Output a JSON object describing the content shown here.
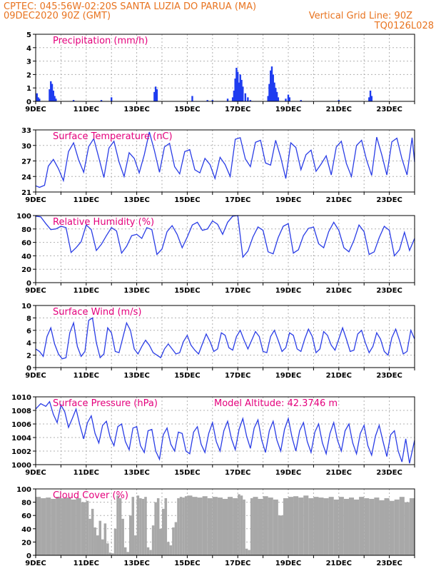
{
  "header": {
    "left_line1": "CPTEC:   045:56W-02:20S   SANTA LUZIA DO PARUA (MA)",
    "left_line2": "09DEC2020 90Z (GMT)",
    "right_line2": "Vertical Grid Line: 90Z",
    "right_line3": "TQ0126L028"
  },
  "colors": {
    "header": "#e8731f",
    "title": "#e4007c",
    "series": "#2a3de6",
    "cloud": "#a8a8a8",
    "bars": "#1e3cf0"
  },
  "chart_data": [
    {
      "type": "bar",
      "title": "Precipitation (mm/h)",
      "xlim": [
        0,
        15
      ],
      "ylim": [
        0,
        5
      ],
      "yticks": [
        "0",
        "1",
        "2",
        "3",
        "4",
        "5"
      ],
      "xticks": [
        "9DEC",
        "11DEC",
        "13DEC",
        "15DEC",
        "17DEC",
        "19DEC",
        "21DEC",
        "23DEC"
      ],
      "x": [
        0.05,
        0.1,
        0.15,
        0.55,
        0.6,
        0.65,
        0.7,
        0.75,
        0.8,
        1.5,
        2.6,
        3.0,
        4.7,
        4.75,
        4.8,
        6.2,
        6.8,
        7.0,
        7.6,
        7.8,
        7.85,
        7.9,
        7.95,
        8.0,
        8.05,
        8.1,
        8.15,
        8.2,
        8.3,
        8.4,
        8.5,
        9.2,
        9.25,
        9.3,
        9.35,
        9.4,
        9.45,
        9.5,
        9.55,
        9.6,
        9.9,
        10.0,
        10.05,
        10.5,
        12.0,
        13.2,
        13.25,
        13.3
      ],
      "values": [
        0.6,
        0.3,
        0.2,
        0.9,
        1.5,
        1.3,
        0.8,
        0.4,
        0.2,
        0.1,
        0.1,
        0.3,
        0.7,
        1.1,
        0.9,
        0.4,
        0.1,
        0.1,
        0.2,
        0.3,
        0.8,
        1.7,
        2.5,
        2.2,
        1.4,
        2.0,
        1.6,
        1.1,
        0.6,
        0.3,
        0.1,
        0.4,
        1.3,
        2.3,
        2.6,
        2.0,
        1.4,
        1.0,
        0.7,
        0.3,
        0.2,
        0.5,
        0.3,
        0.1,
        0.1,
        0.3,
        0.8,
        0.4
      ]
    },
    {
      "type": "line",
      "title": "Surface Temperature (nC)",
      "xlim": [
        0,
        15
      ],
      "ylim": [
        21,
        33
      ],
      "yticks": [
        "21",
        "24",
        "27",
        "30",
        "33"
      ],
      "xticks": [
        "9DEC",
        "11DEC",
        "13DEC",
        "15DEC",
        "17DEC",
        "19DEC",
        "21DEC",
        "23DEC"
      ],
      "x": [
        0,
        0.15,
        0.35,
        0.5,
        0.7,
        0.9,
        1.1,
        1.3,
        1.5,
        1.7,
        1.9,
        2.1,
        2.3,
        2.5,
        2.7,
        2.9,
        3.1,
        3.3,
        3.5,
        3.7,
        3.9,
        4.1,
        4.3,
        4.5,
        4.7,
        4.9,
        5.1,
        5.3,
        5.5,
        5.7,
        5.9,
        6.1,
        6.3,
        6.5,
        6.7,
        6.9,
        7.1,
        7.3,
        7.5,
        7.7,
        7.9,
        8.1,
        8.3,
        8.5,
        8.7,
        8.9,
        9.1,
        9.3,
        9.5,
        9.7,
        9.9,
        10.1,
        10.3,
        10.5,
        10.7,
        10.9,
        11.1,
        11.3,
        11.5,
        11.7,
        11.9,
        12.1,
        12.3,
        12.5,
        12.7,
        12.9,
        13.1,
        13.3,
        13.5,
        13.7,
        13.9,
        14.1,
        14.3,
        14.5,
        14.7,
        14.9,
        15
      ],
      "values": [
        22.2,
        21.9,
        22.3,
        26.0,
        27.3,
        25.5,
        23.2,
        28.8,
        30.5,
        27.2,
        24.8,
        29.8,
        31.3,
        27.6,
        23.8,
        29.5,
        30.8,
        26.8,
        24.0,
        28.6,
        27.5,
        24.7,
        28.2,
        32.6,
        29.0,
        24.8,
        29.7,
        30.4,
        25.9,
        24.5,
        28.8,
        29.2,
        25.3,
        24.7,
        27.5,
        26.3,
        23.6,
        27.7,
        26.3,
        24.0,
        31.2,
        31.5,
        27.4,
        25.9,
        30.6,
        31.0,
        26.6,
        26.2,
        31.0,
        27.7,
        23.6,
        30.5,
        29.6,
        25.3,
        28.2,
        29.1,
        25.0,
        26.4,
        28.0,
        24.3,
        29.7,
        30.8,
        26.5,
        24.0,
        30.0,
        31.0,
        27.2,
        24.2,
        31.6,
        28.2,
        24.3,
        30.7,
        31.4,
        27.4,
        24.3,
        31.5,
        26.8
      ]
    },
    {
      "type": "line",
      "title": "Relative Humidity (%)",
      "xlim": [
        0,
        15
      ],
      "ylim": [
        0,
        100
      ],
      "yticks": [
        "0",
        "20",
        "40",
        "60",
        "80",
        "100"
      ],
      "xticks": [
        "9DEC",
        "11DEC",
        "13DEC",
        "15DEC",
        "17DEC",
        "19DEC",
        "21DEC",
        "23DEC"
      ],
      "x": [
        0,
        0.2,
        0.4,
        0.6,
        0.8,
        1.0,
        1.2,
        1.4,
        1.6,
        1.8,
        2.0,
        2.2,
        2.4,
        2.6,
        2.8,
        3.0,
        3.2,
        3.4,
        3.6,
        3.8,
        4.0,
        4.2,
        4.4,
        4.6,
        4.8,
        5.0,
        5.2,
        5.4,
        5.6,
        5.8,
        6.0,
        6.2,
        6.4,
        6.6,
        6.8,
        7.0,
        7.2,
        7.4,
        7.6,
        7.8,
        8.0,
        8.2,
        8.4,
        8.6,
        8.8,
        9.0,
        9.2,
        9.4,
        9.6,
        9.8,
        10.0,
        10.2,
        10.4,
        10.6,
        10.8,
        11.0,
        11.2,
        11.4,
        11.6,
        11.8,
        12.0,
        12.2,
        12.4,
        12.6,
        12.8,
        13.0,
        13.2,
        13.4,
        13.6,
        13.8,
        14.0,
        14.2,
        14.4,
        14.6,
        14.8,
        15
      ],
      "values": [
        99,
        98,
        88,
        79,
        80,
        84,
        82,
        45,
        52,
        61,
        86,
        79,
        48,
        57,
        70,
        82,
        77,
        44,
        54,
        70,
        72,
        66,
        82,
        79,
        42,
        50,
        76,
        85,
        72,
        52,
        68,
        86,
        90,
        78,
        80,
        92,
        87,
        72,
        90,
        99,
        100,
        38,
        47,
        68,
        83,
        78,
        46,
        43,
        67,
        84,
        88,
        44,
        49,
        70,
        81,
        83,
        58,
        52,
        76,
        90,
        78,
        52,
        46,
        63,
        86,
        76,
        42,
        46,
        67,
        84,
        78,
        40,
        49,
        75,
        48,
        66
      ]
    },
    {
      "type": "line",
      "title": "Surface Wind (m/s)",
      "xlim": [
        0,
        15
      ],
      "ylim": [
        0,
        10
      ],
      "yticks": [
        "0",
        "2",
        "4",
        "6",
        "8",
        "10"
      ],
      "xticks": [
        "9DEC",
        "11DEC",
        "13DEC",
        "15DEC",
        "17DEC",
        "19DEC",
        "21DEC",
        "23DEC"
      ],
      "x": [
        0,
        0.15,
        0.3,
        0.45,
        0.6,
        0.75,
        0.9,
        1.05,
        1.2,
        1.35,
        1.5,
        1.65,
        1.8,
        1.95,
        2.1,
        2.25,
        2.4,
        2.55,
        2.7,
        2.85,
        3.0,
        3.15,
        3.3,
        3.45,
        3.6,
        3.75,
        3.9,
        4.05,
        4.2,
        4.35,
        4.5,
        4.65,
        4.8,
        4.95,
        5.1,
        5.25,
        5.4,
        5.55,
        5.7,
        5.85,
        6.0,
        6.15,
        6.3,
        6.45,
        6.6,
        6.75,
        6.9,
        7.05,
        7.2,
        7.35,
        7.5,
        7.65,
        7.8,
        7.95,
        8.1,
        8.25,
        8.4,
        8.55,
        8.7,
        8.85,
        9.0,
        9.15,
        9.3,
        9.45,
        9.6,
        9.75,
        9.9,
        10.05,
        10.2,
        10.35,
        10.5,
        10.65,
        10.8,
        10.95,
        11.1,
        11.25,
        11.4,
        11.55,
        11.7,
        11.85,
        12.0,
        12.15,
        12.3,
        12.45,
        12.6,
        12.75,
        12.9,
        13.05,
        13.2,
        13.35,
        13.5,
        13.65,
        13.8,
        13.95,
        14.1,
        14.25,
        14.4,
        14.55,
        14.7,
        14.85,
        15
      ],
      "values": [
        3.0,
        2.6,
        1.8,
        5.0,
        6.4,
        3.8,
        2.2,
        1.4,
        1.6,
        5.6,
        7.2,
        3.4,
        1.8,
        2.6,
        7.6,
        8.0,
        4.0,
        1.6,
        2.2,
        6.4,
        5.6,
        2.6,
        2.4,
        4.8,
        7.2,
        6.0,
        3.0,
        2.2,
        3.4,
        4.4,
        3.6,
        2.4,
        2.0,
        1.6,
        3.0,
        3.8,
        3.0,
        2.2,
        2.4,
        4.2,
        5.2,
        3.6,
        2.8,
        2.2,
        3.8,
        5.4,
        4.2,
        2.6,
        3.0,
        5.6,
        5.2,
        3.2,
        2.8,
        5.0,
        6.0,
        4.4,
        3.0,
        4.4,
        5.8,
        5.0,
        2.6,
        2.4,
        5.0,
        6.0,
        4.4,
        2.6,
        3.2,
        5.6,
        5.2,
        3.0,
        2.6,
        4.6,
        6.2,
        5.0,
        2.4,
        3.0,
        5.8,
        5.2,
        3.6,
        2.8,
        4.6,
        6.4,
        4.6,
        2.6,
        2.8,
        5.4,
        6.0,
        4.0,
        2.4,
        3.4,
        5.6,
        4.6,
        2.6,
        2.0,
        4.8,
        6.2,
        4.4,
        2.2,
        2.6,
        6.0,
        4.6
      ]
    },
    {
      "type": "line",
      "title": "Surface Pressure (hPa)",
      "annotation": "Model Altitude: 42.3746 m",
      "xlim": [
        0,
        15
      ],
      "ylim": [
        1000,
        1010
      ],
      "yticks": [
        "1000",
        "1002",
        "1004",
        "1006",
        "1008",
        "1010"
      ],
      "xticks": [
        "9DEC",
        "11DEC",
        "13DEC",
        "15DEC",
        "17DEC",
        "19DEC",
        "21DEC",
        "23DEC"
      ],
      "x": [
        0,
        0.2,
        0.4,
        0.55,
        0.7,
        0.85,
        1.0,
        1.15,
        1.3,
        1.45,
        1.6,
        1.75,
        1.9,
        2.05,
        2.2,
        2.35,
        2.5,
        2.65,
        2.8,
        2.95,
        3.1,
        3.25,
        3.4,
        3.55,
        3.7,
        3.85,
        4.0,
        4.15,
        4.3,
        4.45,
        4.6,
        4.75,
        4.9,
        5.05,
        5.2,
        5.35,
        5.5,
        5.65,
        5.8,
        5.95,
        6.1,
        6.25,
        6.4,
        6.55,
        6.7,
        6.85,
        7.0,
        7.15,
        7.3,
        7.45,
        7.6,
        7.75,
        7.9,
        8.05,
        8.2,
        8.35,
        8.5,
        8.65,
        8.8,
        8.95,
        9.1,
        9.25,
        9.4,
        9.55,
        9.7,
        9.85,
        10.0,
        10.15,
        10.3,
        10.45,
        10.6,
        10.75,
        10.9,
        11.05,
        11.2,
        11.35,
        11.5,
        11.65,
        11.8,
        11.95,
        12.1,
        12.25,
        12.4,
        12.55,
        12.7,
        12.85,
        13.0,
        13.15,
        13.3,
        13.45,
        13.6,
        13.75,
        13.9,
        14.05,
        14.2,
        14.35,
        14.5,
        14.65,
        14.8,
        15
      ],
      "values": [
        1008.2,
        1009.0,
        1008.6,
        1009.3,
        1007.4,
        1006.2,
        1008.8,
        1007.8,
        1005.5,
        1006.8,
        1008.2,
        1005.8,
        1003.8,
        1006.2,
        1007.2,
        1004.6,
        1003.2,
        1005.8,
        1006.4,
        1004.0,
        1002.8,
        1005.6,
        1006.0,
        1003.4,
        1002.2,
        1005.4,
        1005.6,
        1002.8,
        1001.8,
        1005.0,
        1005.2,
        1002.0,
        1000.8,
        1004.4,
        1005.4,
        1003.0,
        1002.0,
        1004.8,
        1004.6,
        1002.0,
        1001.6,
        1004.8,
        1005.6,
        1003.0,
        1001.8,
        1004.6,
        1006.2,
        1003.4,
        1002.0,
        1005.0,
        1006.4,
        1003.8,
        1002.2,
        1005.2,
        1006.8,
        1004.2,
        1002.4,
        1005.4,
        1006.6,
        1003.6,
        1001.8,
        1005.0,
        1006.4,
        1003.6,
        1002.0,
        1005.2,
        1006.8,
        1004.0,
        1002.0,
        1005.0,
        1006.2,
        1003.4,
        1001.8,
        1004.8,
        1006.0,
        1003.2,
        1001.6,
        1004.6,
        1006.2,
        1003.6,
        1002.0,
        1005.0,
        1006.0,
        1003.2,
        1001.6,
        1004.6,
        1005.8,
        1002.8,
        1001.4,
        1004.2,
        1005.8,
        1003.4,
        1001.2,
        1004.4,
        1005.0,
        1002.0,
        1000.4,
        1003.8,
        1000.2,
        1003.6
      ]
    },
    {
      "type": "area",
      "title": "Cloud Cover (%)",
      "xlim": [
        0,
        15
      ],
      "ylim": [
        0,
        100
      ],
      "yticks": [
        "0",
        "20",
        "40",
        "60",
        "80",
        "100"
      ],
      "xticks": [
        "9DEC",
        "11DEC",
        "13DEC",
        "15DEC",
        "17DEC",
        "19DEC",
        "21DEC",
        "23DEC"
      ],
      "x": [
        0,
        0.2,
        0.4,
        0.6,
        0.8,
        1.0,
        1.2,
        1.4,
        1.6,
        1.8,
        2.0,
        2.1,
        2.2,
        2.3,
        2.4,
        2.5,
        2.6,
        2.7,
        2.8,
        2.9,
        3.0,
        3.1,
        3.2,
        3.3,
        3.4,
        3.5,
        3.6,
        3.7,
        3.8,
        3.9,
        4.0,
        4.1,
        4.2,
        4.3,
        4.4,
        4.5,
        4.6,
        4.7,
        4.8,
        4.9,
        5.0,
        5.1,
        5.2,
        5.3,
        5.4,
        5.5,
        5.6,
        5.7,
        5.8,
        5.9,
        6.0,
        6.2,
        6.4,
        6.6,
        6.8,
        7.0,
        7.2,
        7.4,
        7.6,
        7.8,
        8.0,
        8.1,
        8.2,
        8.3,
        8.4,
        8.5,
        8.6,
        8.8,
        9.0,
        9.2,
        9.4,
        9.6,
        9.8,
        10.0,
        10.2,
        10.4,
        10.6,
        10.8,
        11.0,
        11.2,
        11.4,
        11.6,
        11.8,
        12.0,
        12.2,
        12.4,
        12.6,
        12.8,
        13.0,
        13.2,
        13.4,
        13.6,
        13.8,
        14.0,
        14.2,
        14.4,
        14.6,
        14.8,
        15
      ],
      "values": [
        88,
        86,
        87,
        85,
        88,
        86,
        87,
        84,
        86,
        80,
        82,
        55,
        70,
        42,
        30,
        52,
        24,
        48,
        18,
        4,
        3,
        40,
        90,
        86,
        55,
        12,
        5,
        60,
        88,
        30,
        90,
        86,
        85,
        88,
        12,
        8,
        45,
        80,
        86,
        40,
        70,
        86,
        20,
        15,
        42,
        50,
        86,
        88,
        87,
        89,
        90,
        88,
        87,
        89,
        86,
        88,
        87,
        85,
        88,
        86,
        92,
        90,
        84,
        10,
        8,
        86,
        88,
        85,
        89,
        87,
        84,
        60,
        86,
        88,
        89,
        87,
        90,
        86,
        88,
        87,
        86,
        88,
        84,
        88,
        85,
        87,
        84,
        88,
        86,
        85,
        87,
        83,
        86,
        82,
        84,
        88,
        80,
        86,
        87
      ]
    }
  ]
}
